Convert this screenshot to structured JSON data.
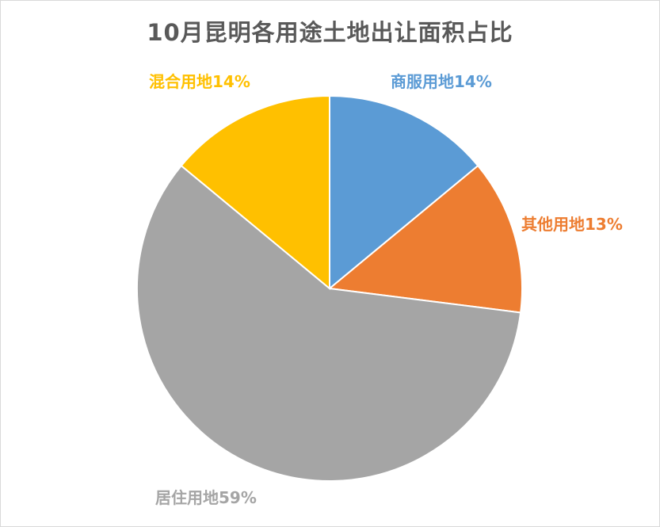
{
  "chart_data": {
    "type": "pie",
    "title": "10月昆明各用途土地出让面积占比",
    "slices": [
      {
        "name": "商服用地",
        "value": 14,
        "label": "商服用地14%",
        "color": "#5b9bd5"
      },
      {
        "name": "其他用地",
        "value": 13,
        "label": "其他用地13%",
        "color": "#ed7d31"
      },
      {
        "name": "居住用地",
        "value": 59,
        "label": "居住用地59%",
        "color": "#a5a5a5"
      },
      {
        "name": "混合用地",
        "value": 14,
        "label": "混合用地14%",
        "color": "#ffc000"
      }
    ],
    "legend": "none",
    "start_angle": "12 o'clock",
    "direction": "clockwise"
  }
}
